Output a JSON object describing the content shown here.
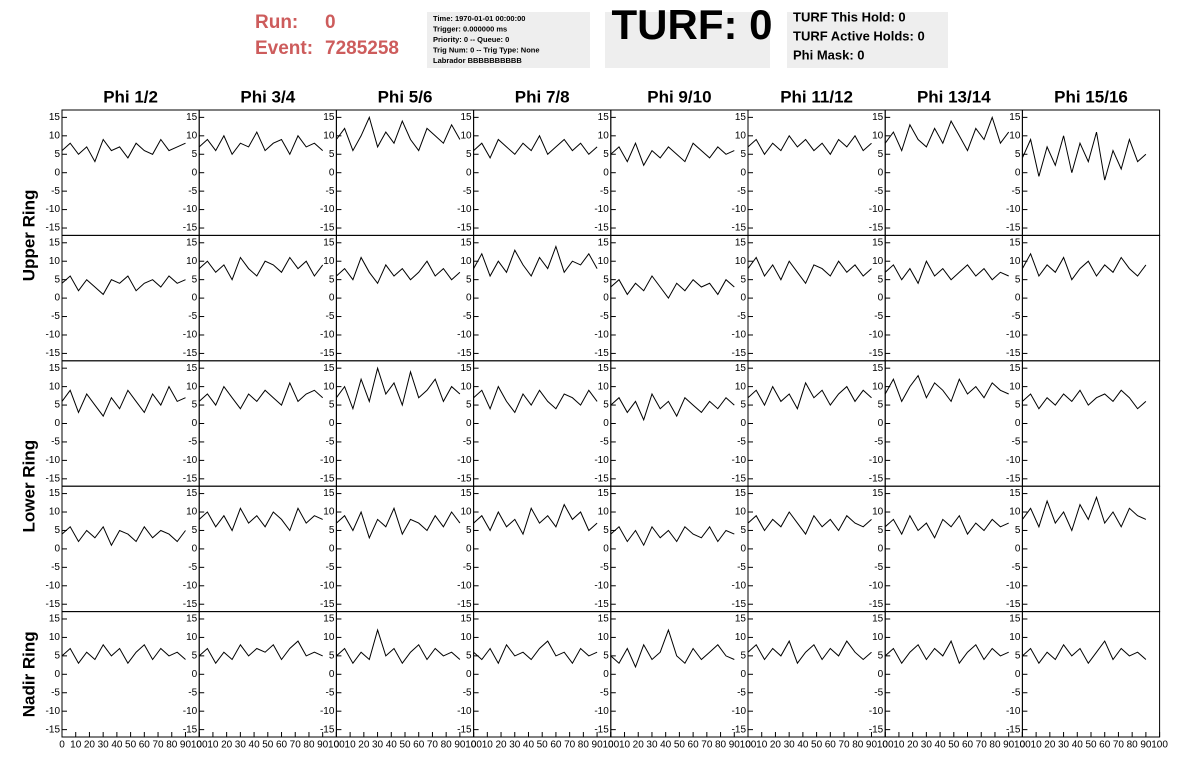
{
  "header": {
    "run_label": "Run:",
    "run": "0",
    "event_label": "Event:",
    "event": "7285258"
  },
  "info_box": {
    "lines": [
      "Time: 1970-01-01 00:00:00",
      "Trigger: 0.000000 ms",
      "Priority: 0 -- Queue: 0",
      "Trig Num: 0 -- Trig Type: None",
      "Labrador BBBBBBBBBB"
    ]
  },
  "turf": {
    "label": "TURF: 0"
  },
  "turf_stats": {
    "lines": [
      "TURF This Hold: 0",
      "TURF Active Holds: 0",
      "Phi Mask: 0"
    ]
  },
  "columns": [
    "Phi 1/2",
    "Phi 3/4",
    "Phi 5/6",
    "Phi 7/8",
    "Phi 9/10",
    "Phi 11/12",
    "Phi 13/14",
    "Phi 15/16"
  ],
  "ring_labels": [
    "Upper Ring",
    "Lower Ring",
    "Nadir Ring"
  ],
  "axes": {
    "xlim": [
      0,
      100
    ],
    "xticks": [
      0,
      10,
      20,
      30,
      40,
      50,
      60,
      70,
      80,
      90,
      100
    ],
    "ylim": [
      -17,
      17
    ],
    "yticks": [
      -15,
      -10,
      -5,
      0,
      5,
      10,
      15
    ]
  },
  "x": [
    0,
    6,
    12,
    18,
    24,
    30,
    36,
    42,
    48,
    54,
    60,
    66,
    72,
    78,
    84,
    90
  ],
  "panels": [
    [
      6,
      8,
      5,
      7,
      3,
      9,
      6,
      7,
      4,
      8,
      6,
      5,
      9,
      6,
      7,
      8
    ],
    [
      7,
      9,
      6,
      10,
      5,
      8,
      7,
      11,
      6,
      8,
      9,
      5,
      10,
      7,
      8,
      6
    ],
    [
      9,
      12,
      6,
      10,
      15,
      7,
      11,
      8,
      14,
      9,
      6,
      12,
      10,
      8,
      13,
      9
    ],
    [
      6,
      8,
      4,
      9,
      7,
      5,
      8,
      6,
      10,
      5,
      7,
      9,
      6,
      8,
      5,
      7
    ],
    [
      5,
      7,
      3,
      8,
      2,
      6,
      4,
      7,
      5,
      3,
      8,
      6,
      4,
      7,
      5,
      6
    ],
    [
      7,
      9,
      5,
      8,
      6,
      10,
      7,
      9,
      6,
      8,
      5,
      9,
      7,
      10,
      6,
      8
    ],
    [
      8,
      11,
      6,
      13,
      9,
      7,
      12,
      8,
      14,
      10,
      6,
      12,
      9,
      15,
      8,
      11
    ],
    [
      4,
      9,
      -1,
      7,
      2,
      10,
      0,
      8,
      3,
      11,
      -2,
      6,
      1,
      9,
      3,
      5
    ],
    [
      4,
      6,
      2,
      5,
      3,
      1,
      5,
      4,
      6,
      2,
      4,
      5,
      3,
      6,
      4,
      5
    ],
    [
      8,
      10,
      7,
      9,
      5,
      11,
      8,
      6,
      10,
      9,
      7,
      11,
      8,
      10,
      6,
      9
    ],
    [
      6,
      8,
      5,
      11,
      7,
      4,
      9,
      6,
      8,
      5,
      7,
      10,
      6,
      8,
      5,
      7
    ],
    [
      8,
      12,
      6,
      10,
      7,
      13,
      9,
      6,
      11,
      8,
      14,
      7,
      10,
      9,
      12,
      8
    ],
    [
      3,
      5,
      1,
      4,
      2,
      6,
      3,
      0,
      4,
      2,
      5,
      3,
      4,
      1,
      5,
      3
    ],
    [
      8,
      11,
      6,
      9,
      5,
      10,
      7,
      4,
      9,
      8,
      6,
      10,
      7,
      9,
      6,
      8
    ],
    [
      7,
      9,
      5,
      8,
      4,
      10,
      6,
      8,
      5,
      7,
      9,
      6,
      8,
      5,
      7,
      6
    ],
    [
      8,
      12,
      6,
      9,
      7,
      11,
      5,
      8,
      10,
      6,
      9,
      7,
      11,
      8,
      6,
      9
    ],
    [
      6,
      9,
      3,
      8,
      5,
      2,
      7,
      4,
      9,
      6,
      3,
      8,
      5,
      10,
      6,
      7
    ],
    [
      6,
      8,
      5,
      10,
      7,
      4,
      8,
      6,
      9,
      7,
      5,
      11,
      6,
      8,
      9,
      7
    ],
    [
      7,
      10,
      4,
      12,
      6,
      15,
      8,
      11,
      5,
      14,
      7,
      9,
      12,
      6,
      10,
      8
    ],
    [
      7,
      9,
      4,
      10,
      6,
      3,
      8,
      5,
      9,
      6,
      4,
      8,
      7,
      5,
      9,
      6
    ],
    [
      5,
      7,
      3,
      6,
      1,
      8,
      4,
      6,
      2,
      7,
      5,
      3,
      6,
      4,
      7,
      5
    ],
    [
      7,
      9,
      5,
      10,
      6,
      8,
      4,
      11,
      7,
      9,
      5,
      8,
      10,
      6,
      9,
      7
    ],
    [
      8,
      12,
      6,
      10,
      13,
      7,
      11,
      9,
      6,
      12,
      8,
      10,
      7,
      11,
      9,
      8
    ],
    [
      6,
      8,
      4,
      7,
      5,
      8,
      6,
      9,
      5,
      7,
      8,
      6,
      9,
      7,
      4,
      6
    ],
    [
      4,
      6,
      2,
      5,
      3,
      6,
      1,
      5,
      4,
      2,
      6,
      3,
      5,
      4,
      2,
      5
    ],
    [
      8,
      10,
      6,
      9,
      5,
      11,
      7,
      9,
      6,
      10,
      8,
      5,
      11,
      7,
      9,
      8
    ],
    [
      7,
      9,
      5,
      10,
      3,
      8,
      6,
      11,
      4,
      8,
      7,
      5,
      9,
      6,
      10,
      7
    ],
    [
      7,
      9,
      5,
      10,
      6,
      8,
      4,
      11,
      7,
      9,
      6,
      12,
      8,
      10,
      5,
      7
    ],
    [
      4,
      6,
      2,
      5,
      1,
      6,
      3,
      5,
      2,
      6,
      4,
      3,
      6,
      2,
      5,
      4
    ],
    [
      7,
      9,
      5,
      8,
      6,
      10,
      7,
      4,
      9,
      6,
      8,
      5,
      9,
      7,
      6,
      8
    ],
    [
      6,
      8,
      4,
      9,
      5,
      7,
      3,
      8,
      6,
      9,
      4,
      7,
      5,
      8,
      6,
      7
    ],
    [
      8,
      11,
      6,
      13,
      7,
      10,
      5,
      12,
      8,
      14,
      7,
      10,
      6,
      11,
      9,
      8
    ],
    [
      5,
      7,
      3,
      6,
      4,
      8,
      5,
      7,
      3,
      6,
      8,
      4,
      7,
      5,
      6,
      4
    ],
    [
      5,
      7,
      3,
      6,
      4,
      8,
      5,
      7,
      6,
      8,
      4,
      7,
      9,
      5,
      6,
      5
    ],
    [
      5,
      7,
      3,
      6,
      4,
      12,
      5,
      7,
      3,
      6,
      8,
      4,
      7,
      5,
      6,
      4
    ],
    [
      6,
      4,
      7,
      3,
      8,
      5,
      6,
      4,
      7,
      9,
      5,
      6,
      3,
      7,
      5,
      6
    ],
    [
      5,
      3,
      7,
      2,
      8,
      4,
      6,
      12,
      5,
      3,
      7,
      4,
      6,
      8,
      5,
      4
    ],
    [
      6,
      8,
      4,
      7,
      5,
      9,
      3,
      6,
      8,
      4,
      7,
      5,
      9,
      6,
      4,
      6
    ],
    [
      5,
      7,
      3,
      6,
      8,
      4,
      7,
      5,
      9,
      3,
      6,
      8,
      4,
      7,
      5,
      6
    ],
    [
      5,
      7,
      3,
      6,
      4,
      8,
      5,
      7,
      3,
      6,
      9,
      4,
      7,
      5,
      6,
      4
    ]
  ]
}
